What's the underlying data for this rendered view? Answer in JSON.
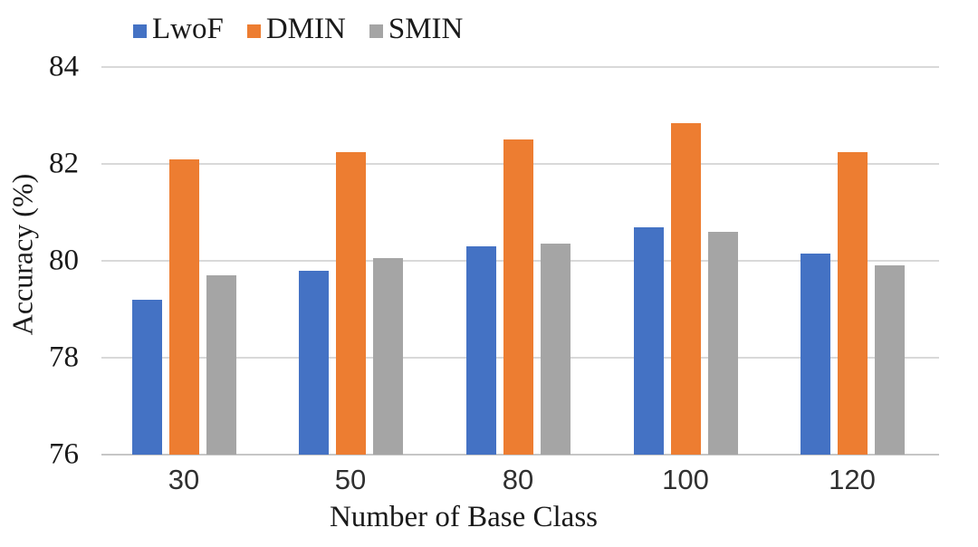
{
  "chart_data": {
    "type": "bar",
    "title": "",
    "xlabel": "Number of Base Class",
    "ylabel": "Accuracy (%)",
    "categories": [
      "30",
      "50",
      "80",
      "100",
      "120"
    ],
    "series": [
      {
        "name": "LwoF",
        "color": "#4472C4",
        "values": [
          79.2,
          79.8,
          80.3,
          80.7,
          80.15
        ]
      },
      {
        "name": "DMIN",
        "color": "#ED7D31",
        "values": [
          82.1,
          82.25,
          82.5,
          82.85,
          82.25
        ]
      },
      {
        "name": "SMIN",
        "color": "#A5A5A5",
        "values": [
          79.7,
          80.05,
          80.35,
          80.6,
          79.9
        ]
      }
    ],
    "ylim": [
      76,
      84
    ],
    "yticks": [
      76,
      78,
      80,
      82,
      84
    ],
    "grid": true,
    "legend_position": "top-left",
    "gridline_color": "#D9D9D9",
    "axis_line_color": "#C6C6C6",
    "text_color": "#1A1A1A"
  }
}
